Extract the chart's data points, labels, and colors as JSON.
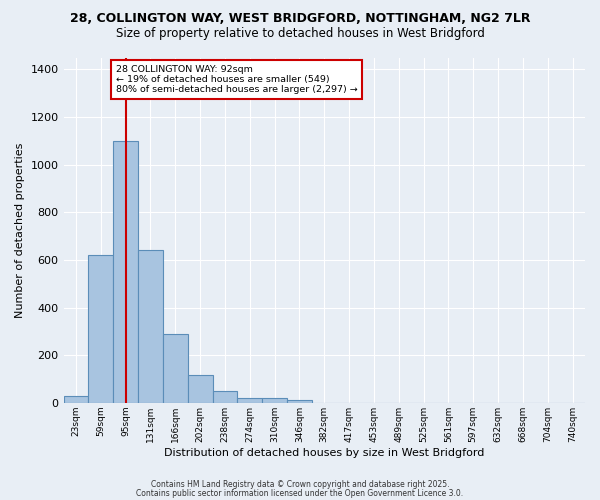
{
  "title": "28, COLLINGTON WAY, WEST BRIDGFORD, NOTTINGHAM, NG2 7LR",
  "subtitle": "Size of property relative to detached houses in West Bridgford",
  "xlabel": "Distribution of detached houses by size in West Bridgford",
  "ylabel": "Number of detached properties",
  "bin_labels": [
    "23sqm",
    "59sqm",
    "95sqm",
    "131sqm",
    "166sqm",
    "202sqm",
    "238sqm",
    "274sqm",
    "310sqm",
    "346sqm",
    "382sqm",
    "417sqm",
    "453sqm",
    "489sqm",
    "525sqm",
    "561sqm",
    "597sqm",
    "632sqm",
    "668sqm",
    "704sqm",
    "740sqm"
  ],
  "bar_heights": [
    30,
    620,
    1100,
    640,
    290,
    115,
    50,
    20,
    20,
    10,
    0,
    0,
    0,
    0,
    0,
    0,
    0,
    0,
    0,
    0,
    0
  ],
  "bar_color": "#a8c4e0",
  "bar_edge_color": "#5b8db8",
  "red_line_bin": 2,
  "red_line_color": "#cc0000",
  "annotation_text": "28 COLLINGTON WAY: 92sqm\n← 19% of detached houses are smaller (549)\n80% of semi-detached houses are larger (2,297) →",
  "annotation_box_color": "#ffffff",
  "annotation_box_edge": "#cc0000",
  "ylim": [
    0,
    1450
  ],
  "yticks": [
    0,
    200,
    400,
    600,
    800,
    1000,
    1200,
    1400
  ],
  "bg_color": "#e8eef5",
  "grid_color": "#ffffff",
  "footer_line1": "Contains HM Land Registry data © Crown copyright and database right 2025.",
  "footer_line2": "Contains public sector information licensed under the Open Government Licence 3.0."
}
